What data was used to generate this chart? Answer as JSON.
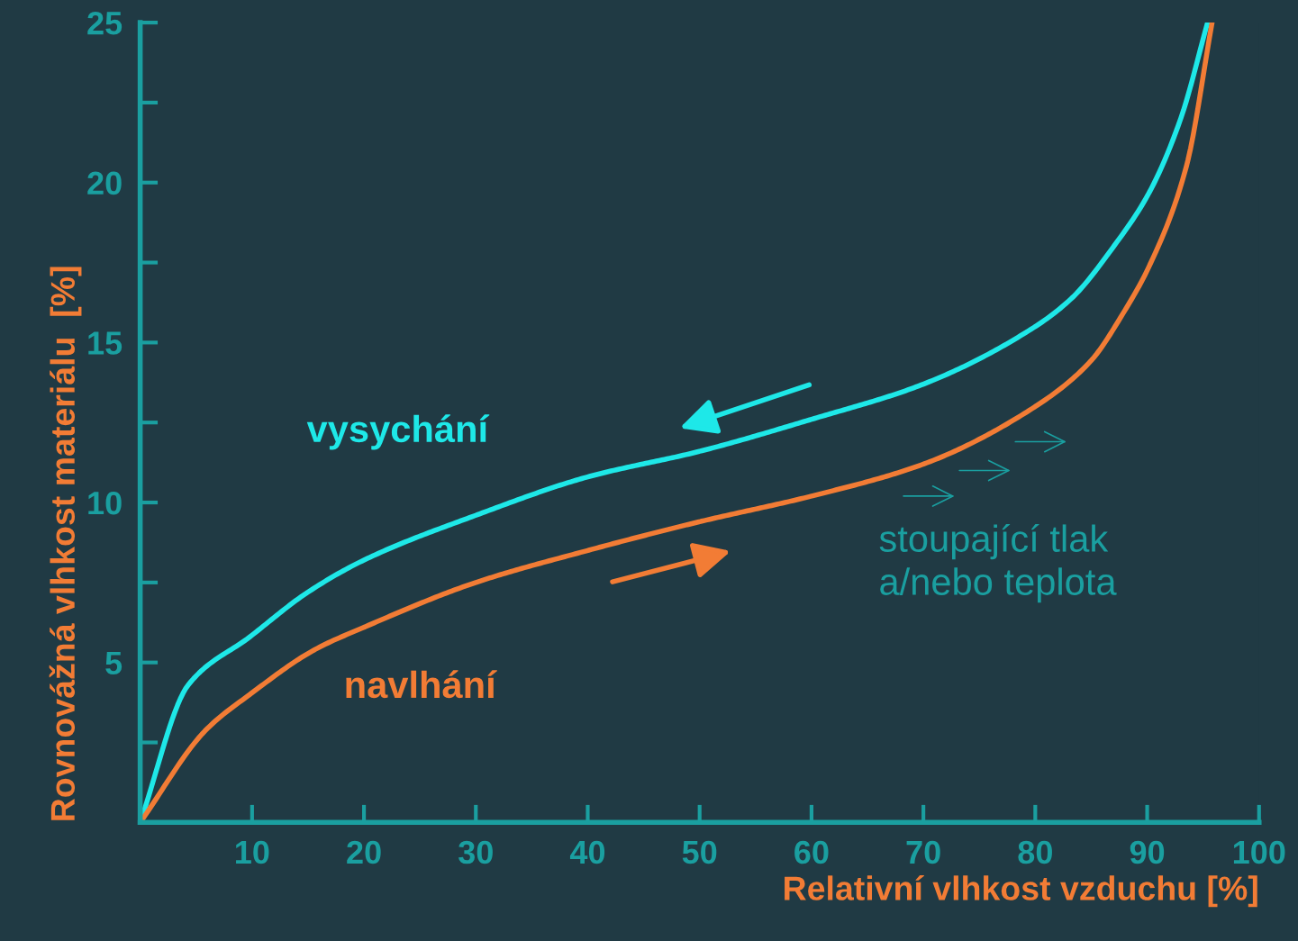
{
  "chart_data": {
    "type": "line",
    "xlabel": "Relativní vlhkost vzduchu [%]",
    "ylabel": "Rovnovážná vlhkost materiálu  [%]",
    "xlim": [
      0,
      100
    ],
    "ylim": [
      0,
      25
    ],
    "xticks": [
      10,
      20,
      30,
      40,
      50,
      60,
      70,
      80,
      90,
      100
    ],
    "yticks": [
      5,
      10,
      15,
      20,
      25
    ],
    "grid": false,
    "legend": false,
    "marker": "none",
    "line_style": "solid",
    "series": [
      {
        "name": "vysychání",
        "color": "#1ee8e8",
        "x": [
          0,
          4.3,
          9.8,
          15,
          20,
          30,
          40,
          50,
          60,
          70,
          80,
          83.3,
          87,
          90.2,
          93,
          95.4
        ],
        "values": [
          0,
          4.3,
          5.8,
          7.2,
          8.2,
          9.6,
          10.8,
          11.6,
          12.6,
          13.7,
          15.5,
          16.4,
          18.0,
          19.7,
          22.0,
          25
        ]
      },
      {
        "name": "navlhání",
        "color": "#f27c35",
        "x": [
          0,
          5.9,
          9.8,
          15.6,
          20,
          30,
          40,
          50,
          60,
          70,
          80,
          84.9,
          88,
          90.2,
          93.5,
          95.8
        ],
        "values": [
          0,
          2.9,
          4.0,
          5.4,
          6.1,
          7.5,
          8.5,
          9.4,
          10.2,
          11.2,
          13.0,
          14.4,
          16.0,
          17.4,
          20.5,
          25
        ]
      }
    ],
    "annotations": [
      "stoupající tlak\na/nebo teplota"
    ]
  }
}
